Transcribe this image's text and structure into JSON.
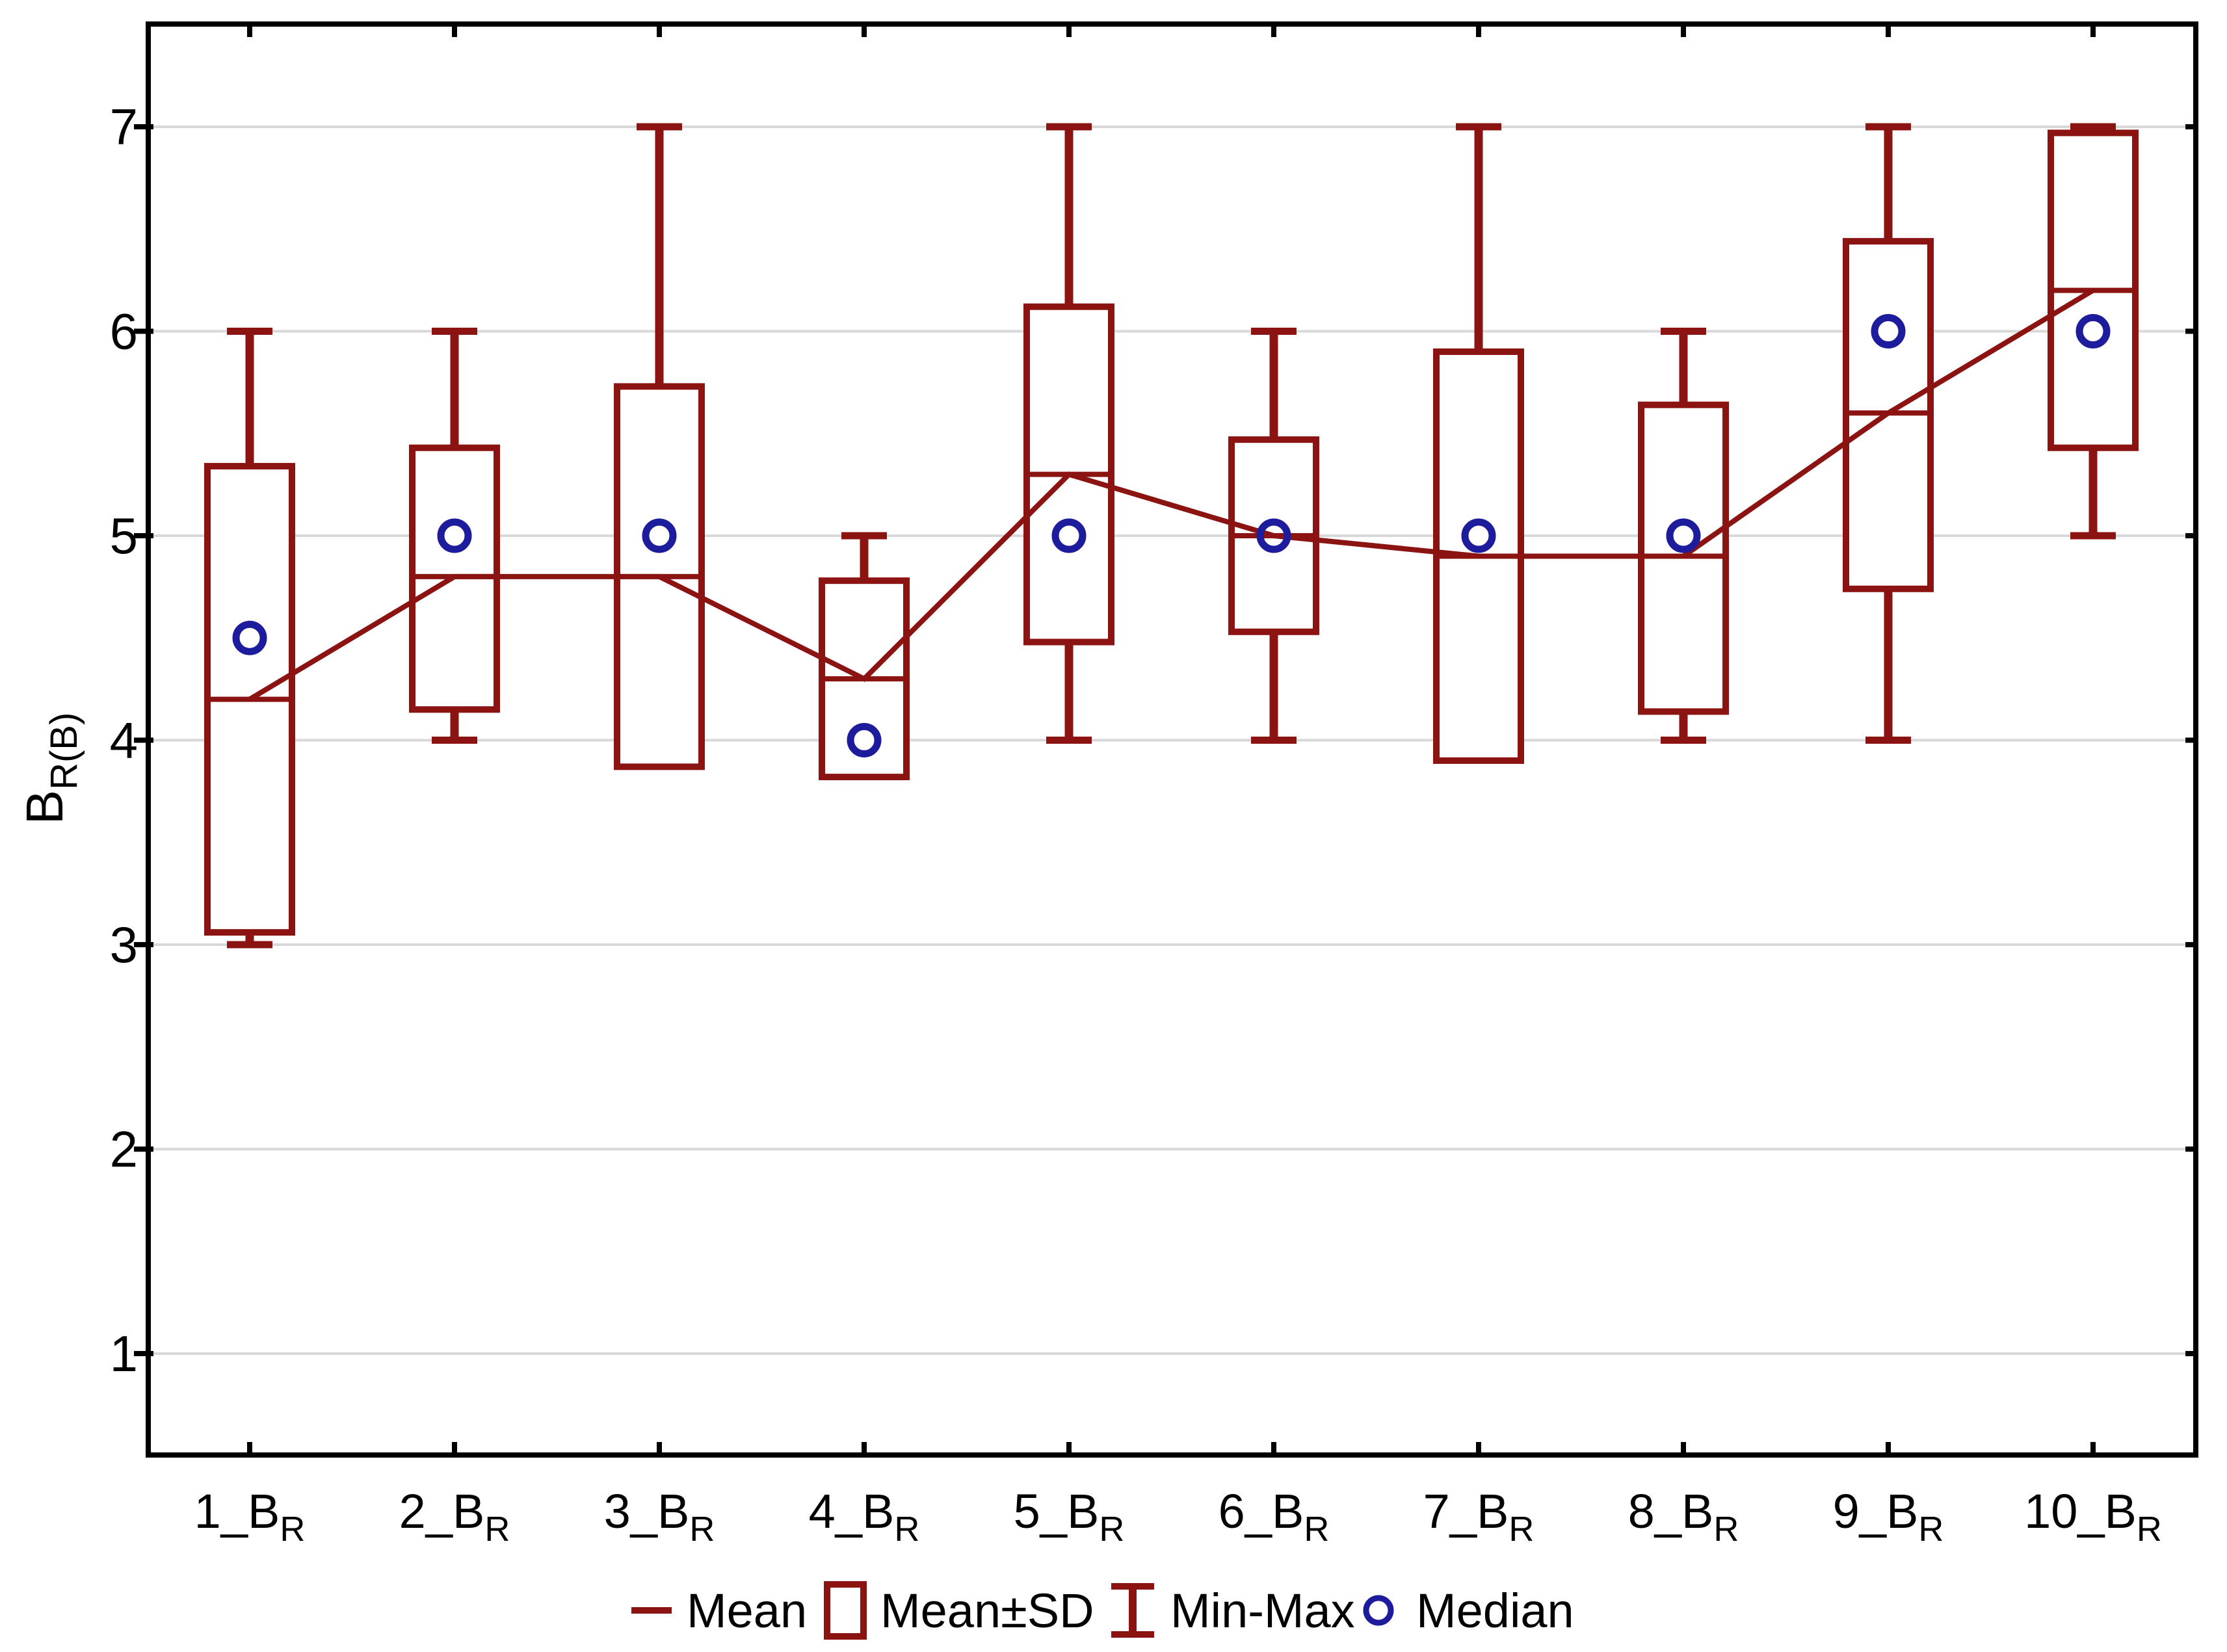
{
  "chart_data": {
    "type": "box",
    "title": "",
    "y_axis_title": {
      "base": "B",
      "sub": "R(B)"
    },
    "y_ticks": [
      1,
      2,
      3,
      4,
      5,
      6,
      7
    ],
    "ylim": [
      0.5,
      7.5
    ],
    "grid": "horizontal",
    "legend_position": "bottom",
    "categories": [
      {
        "label": "1_B",
        "sub": "R",
        "full": "1_B_R"
      },
      {
        "label": "2_B",
        "sub": "R",
        "full": "2_B_R"
      },
      {
        "label": "3_B",
        "sub": "R",
        "full": "3_B_R"
      },
      {
        "label": "4_B",
        "sub": "R",
        "full": "4_B_R"
      },
      {
        "label": "5_B",
        "sub": "R",
        "full": "5_B_R"
      },
      {
        "label": "6_B",
        "sub": "R",
        "full": "6_B_R"
      },
      {
        "label": "7_B",
        "sub": "R",
        "full": "7_B_R"
      },
      {
        "label": "8_B",
        "sub": "R",
        "full": "8_B_R"
      },
      {
        "label": "9_B",
        "sub": "R",
        "full": "9_B_R"
      },
      {
        "label": "10_B",
        "sub": "R",
        "full": "10_B_R"
      }
    ],
    "boxes": [
      {
        "category": "1_B_R",
        "mean": 4.2,
        "sd_low": 3.06,
        "sd_high": 5.34,
        "min": 3.0,
        "max": 6.0,
        "median": 4.5
      },
      {
        "category": "2_B_R",
        "mean": 4.8,
        "sd_low": 4.15,
        "sd_high": 5.43,
        "min": 4.0,
        "max": 6.0,
        "median": 5.0
      },
      {
        "category": "3_B_R",
        "mean": 4.8,
        "sd_low": 3.87,
        "sd_high": 5.73,
        "min": null,
        "max": 7.0,
        "median": 5.0
      },
      {
        "category": "4_B_R",
        "mean": 4.3,
        "sd_low": 3.82,
        "sd_high": 4.78,
        "min": null,
        "max": 5.0,
        "median": 4.0
      },
      {
        "category": "5_B_R",
        "mean": 5.3,
        "sd_low": 4.48,
        "sd_high": 6.12,
        "min": 4.0,
        "max": 7.0,
        "median": 5.0
      },
      {
        "category": "6_B_R",
        "mean": 5.0,
        "sd_low": 4.53,
        "sd_high": 5.47,
        "min": 4.0,
        "max": 6.0,
        "median": 5.0
      },
      {
        "category": "7_B_R",
        "mean": 4.9,
        "sd_low": 3.9,
        "sd_high": 5.9,
        "min": null,
        "max": 7.0,
        "median": 5.0
      },
      {
        "category": "8_B_R",
        "mean": 4.9,
        "sd_low": 4.14,
        "sd_high": 5.64,
        "min": 4.0,
        "max": 6.0,
        "median": 5.0
      },
      {
        "category": "9_B_R",
        "mean": 5.6,
        "sd_low": 4.74,
        "sd_high": 6.44,
        "min": 4.0,
        "max": 7.0,
        "median": 6.0
      },
      {
        "category": "10_B_R",
        "mean": 6.2,
        "sd_low": 5.43,
        "sd_high": 6.97,
        "min": 5.0,
        "max": 7.0,
        "median": 6.0
      }
    ],
    "legend": [
      {
        "label": "Mean",
        "marker": "mean-line"
      },
      {
        "label": "Mean±SD",
        "marker": "mean-sd-box"
      },
      {
        "label": "Min-Max",
        "marker": "min-max-whisker"
      },
      {
        "label": "Median",
        "marker": "median-circle"
      }
    ],
    "colors": {
      "series": "#8b1412",
      "median": "#1c1c9c",
      "grid": "#d9d9d9",
      "frame": "#000000",
      "background": "#ffffff"
    }
  }
}
